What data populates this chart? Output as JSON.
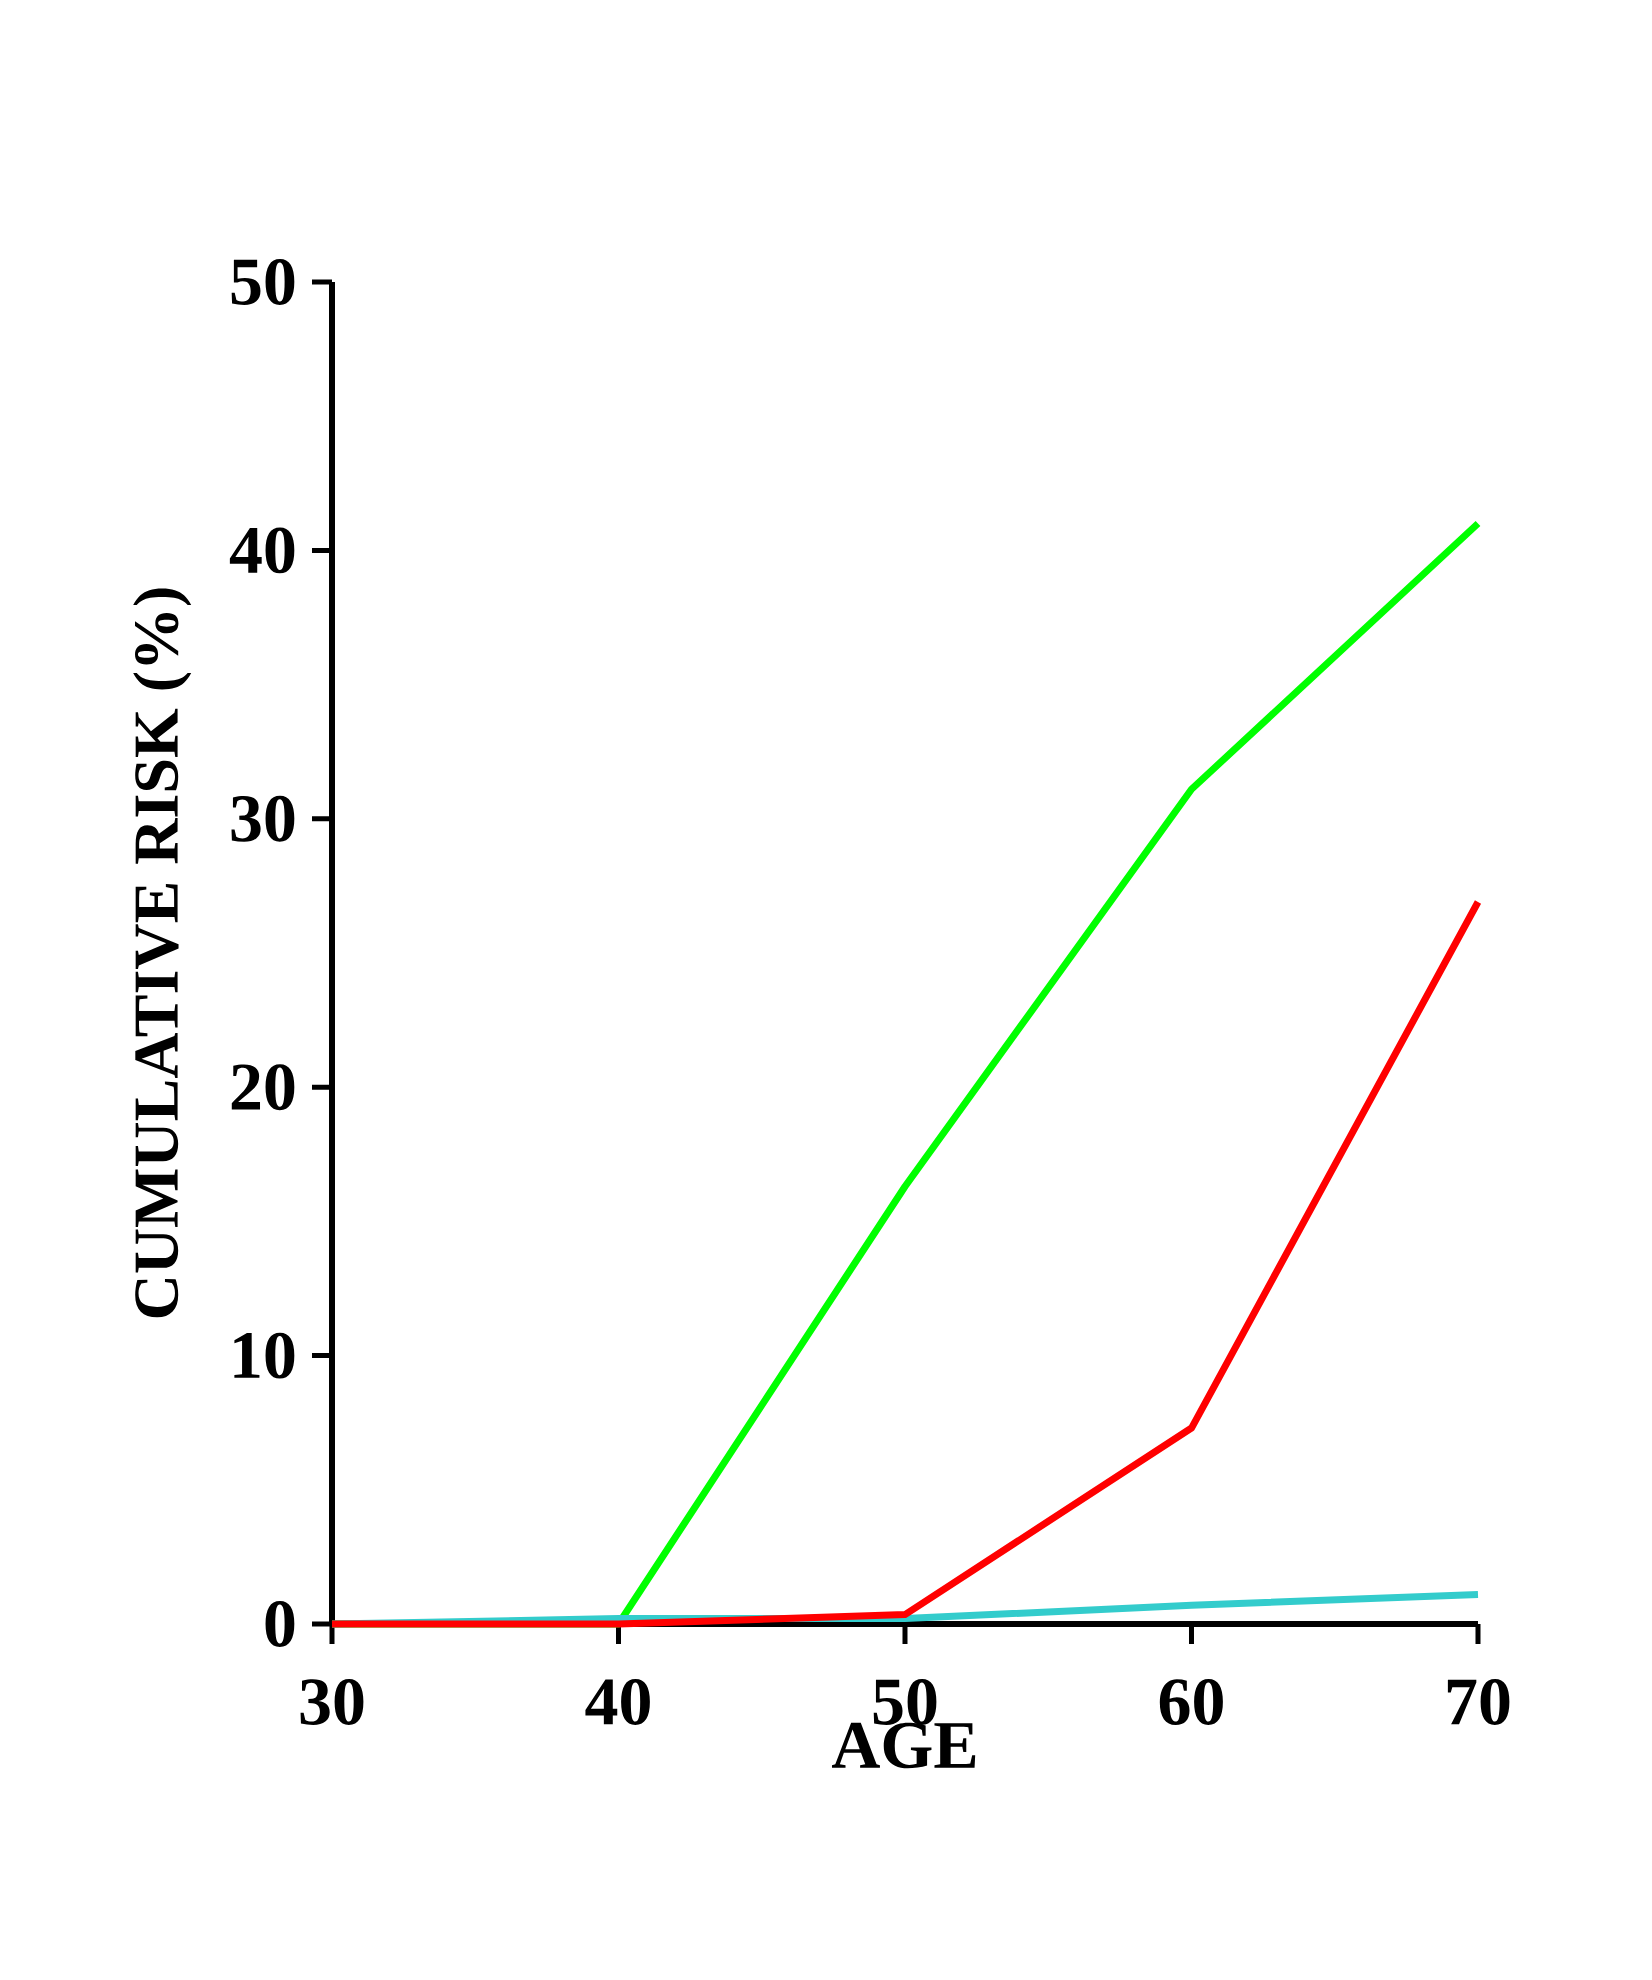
{
  "chart_data": {
    "type": "line",
    "xlabel": "AGE",
    "ylabel": "CUMULATIVE RISK (%)",
    "x": [
      30,
      40,
      50,
      60,
      70
    ],
    "series": [
      {
        "color": "#00ff00",
        "values": [
          0,
          0,
          16.3,
          31.1,
          41.0
        ]
      },
      {
        "color": "#33cccc",
        "values": [
          0,
          0.2,
          0.2,
          0.7,
          1.1
        ]
      },
      {
        "color": "#ff0000",
        "values": [
          0,
          0,
          0.35,
          7.3,
          26.9
        ]
      }
    ],
    "xlim": [
      30,
      70
    ],
    "ylim": [
      0,
      50
    ],
    "xticks": [
      30,
      40,
      50,
      60,
      70
    ],
    "yticks": [
      0,
      10,
      20,
      30,
      40,
      50
    ],
    "grid": false,
    "marker": "none",
    "line_style": "solid"
  }
}
